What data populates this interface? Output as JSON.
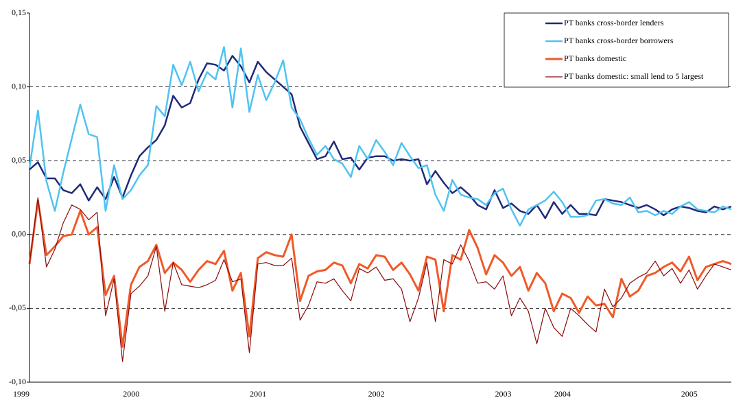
{
  "chart_data": {
    "type": "line",
    "categories": [
      "1999",
      null,
      null,
      null,
      null,
      null,
      null,
      null,
      null,
      null,
      null,
      null,
      null,
      "2000",
      null,
      null,
      null,
      null,
      null,
      null,
      null,
      null,
      null,
      null,
      null,
      null,
      null,
      null,
      "2001",
      null,
      null,
      null,
      null,
      null,
      null,
      null,
      null,
      null,
      null,
      null,
      null,
      null,
      "2002",
      null,
      null,
      null,
      null,
      null,
      null,
      null,
      null,
      null,
      null,
      null,
      null,
      null,
      null,
      "2003",
      null,
      null,
      null,
      null,
      null,
      null,
      "2004",
      null,
      null,
      null,
      null,
      null,
      null,
      null,
      null,
      null,
      null,
      null,
      null,
      null,
      null,
      "2005",
      null,
      null,
      null,
      null
    ],
    "series": [
      {
        "name": "PT banks cross-border lenders",
        "color": "#1f2a7a",
        "values": [
          0.044,
          0.049,
          0.038,
          0.038,
          0.03,
          0.028,
          0.034,
          0.023,
          0.032,
          0.024,
          0.039,
          0.025,
          0.04,
          0.053,
          0.059,
          0.064,
          0.074,
          0.094,
          0.086,
          0.089,
          0.105,
          0.116,
          0.115,
          0.111,
          0.121,
          0.114,
          0.103,
          0.117,
          0.11,
          0.105,
          0.1,
          0.095,
          0.073,
          0.062,
          0.051,
          0.053,
          0.063,
          0.051,
          0.052,
          0.044,
          0.052,
          0.053,
          0.053,
          0.05,
          0.051,
          0.05,
          0.051,
          0.034,
          0.043,
          0.035,
          0.028,
          0.032,
          0.027,
          0.02,
          0.017,
          0.03,
          0.018,
          0.021,
          0.016,
          0.014,
          0.02,
          0.011,
          0.022,
          0.014,
          0.02,
          0.014,
          0.014,
          0.013,
          0.024,
          0.023,
          0.022,
          0.02,
          0.018,
          0.02,
          0.017,
          0.013,
          0.017,
          0.019,
          0.018,
          0.016,
          0.015,
          0.019,
          0.017,
          0.019
        ]
      },
      {
        "name": "PT banks cross-border borrowers",
        "color": "#4fc3f0",
        "values": [
          0.045,
          0.084,
          0.036,
          0.016,
          0.042,
          0.065,
          0.088,
          0.068,
          0.066,
          0.016,
          0.047,
          0.024,
          0.03,
          0.04,
          0.047,
          0.087,
          0.08,
          0.115,
          0.101,
          0.117,
          0.097,
          0.11,
          0.105,
          0.127,
          0.086,
          0.126,
          0.083,
          0.108,
          0.091,
          0.103,
          0.118,
          0.086,
          0.078,
          0.065,
          0.054,
          0.06,
          0.051,
          0.048,
          0.039,
          0.06,
          0.051,
          0.064,
          0.056,
          0.047,
          0.062,
          0.053,
          0.045,
          0.047,
          0.027,
          0.016,
          0.037,
          0.027,
          0.025,
          0.024,
          0.02,
          0.028,
          0.031,
          0.017,
          0.006,
          0.017,
          0.02,
          0.023,
          0.029,
          0.022,
          0.012,
          0.012,
          0.013,
          0.023,
          0.024,
          0.021,
          0.02,
          0.025,
          0.015,
          0.016,
          0.013,
          0.016,
          0.014,
          0.019,
          0.022,
          0.017,
          0.016,
          0.015,
          0.019,
          0.017
        ]
      },
      {
        "name": "PT banks domestic",
        "color": "#f05a28",
        "values": [
          -0.02,
          0.023,
          -0.014,
          -0.008,
          -0.001,
          0.0,
          0.016,
          0.0,
          0.005,
          -0.041,
          -0.028,
          -0.076,
          -0.034,
          -0.022,
          -0.018,
          -0.007,
          -0.026,
          -0.019,
          -0.024,
          -0.032,
          -0.024,
          -0.018,
          -0.02,
          -0.011,
          -0.038,
          -0.026,
          -0.069,
          -0.016,
          -0.012,
          -0.014,
          -0.015,
          0.0,
          -0.045,
          -0.028,
          -0.025,
          -0.024,
          -0.019,
          -0.021,
          -0.033,
          -0.02,
          -0.023,
          -0.014,
          -0.015,
          -0.024,
          -0.019,
          -0.027,
          -0.038,
          -0.015,
          -0.017,
          -0.052,
          -0.014,
          -0.017,
          0.003,
          -0.009,
          -0.027,
          -0.014,
          -0.019,
          -0.028,
          -0.022,
          -0.038,
          -0.026,
          -0.033,
          -0.052,
          -0.04,
          -0.043,
          -0.053,
          -0.042,
          -0.048,
          -0.047,
          -0.056,
          -0.03,
          -0.042,
          -0.038,
          -0.028,
          -0.026,
          -0.022,
          -0.019,
          -0.025,
          -0.015,
          -0.031,
          -0.022,
          -0.02,
          -0.018,
          -0.02
        ]
      },
      {
        "name": "PT banks domestic: small lend to 5 largest",
        "color": "#8b0a0a",
        "values": [
          -0.02,
          0.025,
          -0.022,
          -0.01,
          0.008,
          0.02,
          0.017,
          0.01,
          0.015,
          -0.055,
          -0.03,
          -0.086,
          -0.04,
          -0.035,
          -0.028,
          -0.008,
          -0.052,
          -0.019,
          -0.034,
          -0.035,
          -0.036,
          -0.034,
          -0.031,
          -0.017,
          -0.032,
          -0.03,
          -0.08,
          -0.02,
          -0.019,
          -0.021,
          -0.021,
          -0.016,
          -0.058,
          -0.048,
          -0.032,
          -0.033,
          -0.03,
          -0.038,
          -0.045,
          -0.023,
          -0.026,
          -0.022,
          -0.031,
          -0.03,
          -0.037,
          -0.059,
          -0.043,
          -0.019,
          -0.059,
          -0.017,
          -0.02,
          -0.007,
          -0.018,
          -0.033,
          -0.032,
          -0.037,
          -0.028,
          -0.055,
          -0.043,
          -0.052,
          -0.074,
          -0.05,
          -0.063,
          -0.069,
          -0.05,
          -0.055,
          -0.061,
          -0.066,
          -0.037,
          -0.049,
          -0.043,
          -0.033,
          -0.029,
          -0.026,
          -0.018,
          -0.028,
          -0.023,
          -0.033,
          -0.024,
          -0.037,
          -0.028,
          -0.02,
          -0.022,
          -0.024
        ]
      }
    ],
    "ylim": [
      -0.1,
      0.15
    ],
    "yticks": [
      {
        "value": -0.1,
        "label": "-0,10"
      },
      {
        "value": -0.05,
        "label": "-0,05"
      },
      {
        "value": 0,
        "label": "0,00"
      },
      {
        "value": 0.05,
        "label": "0,05"
      },
      {
        "value": 0.1,
        "label": "0,10"
      },
      {
        "value": 0.15,
        "label": "0,15"
      }
    ],
    "grid": true,
    "legend": "upper right"
  }
}
